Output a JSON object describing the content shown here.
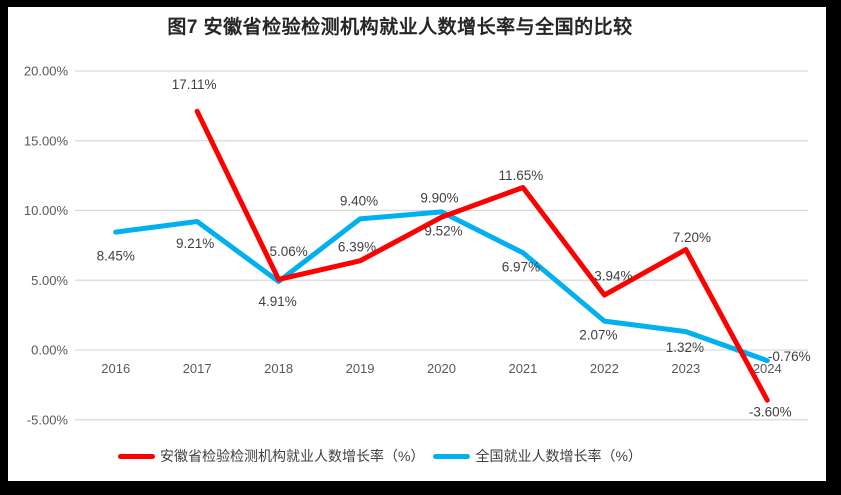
{
  "frame": {
    "background": "#000000",
    "panel_background": "#ffffff"
  },
  "chart_data": {
    "type": "line",
    "title": "图7  安徽省检验检测机构就业人数增长率与全国的比较",
    "categories": [
      "2016",
      "2017",
      "2018",
      "2019",
      "2020",
      "2021",
      "2022",
      "2023",
      "2024"
    ],
    "y_axis": {
      "ticks": [
        {
          "label": "20.00%",
          "value": 20
        },
        {
          "label": "15.00%",
          "value": 15
        },
        {
          "label": "10.00%",
          "value": 10
        },
        {
          "label": "5.00%",
          "value": 5
        },
        {
          "label": "0.00%",
          "value": 0
        },
        {
          "label": "-5.00%",
          "value": -5
        }
      ],
      "range": [
        -5,
        20
      ]
    },
    "grid": true,
    "legend_position": "bottom",
    "series": [
      {
        "id": "anhui",
        "name": "安徽省检验检测机构就业人数增长率（%）",
        "color": "#ff0000",
        "start_index": 1,
        "x": [
          "2017",
          "2018",
          "2019",
          "2020",
          "2021",
          "2022",
          "2023",
          "2024"
        ],
        "values": [
          17.11,
          5.06,
          6.39,
          9.52,
          11.65,
          3.94,
          7.2,
          -3.6
        ],
        "labels": [
          "17.11%",
          "5.06%",
          "6.39%",
          "9.52%",
          "11.65%",
          "3.94%",
          "7.20%",
          "-3.60%"
        ],
        "label_offsets": [
          [
            -3,
            -27
          ],
          [
            10,
            -28
          ],
          [
            -3,
            -14
          ],
          [
            2,
            14
          ],
          [
            -2,
            -12
          ],
          [
            9,
            -19
          ],
          [
            6,
            -12
          ],
          [
            3,
            12
          ]
        ]
      },
      {
        "id": "national",
        "name": "全国就业人数增长率（%）",
        "color": "#00b0f0",
        "start_index": 0,
        "x": [
          "2016",
          "2017",
          "2018",
          "2019",
          "2020",
          "2021",
          "2022",
          "2023",
          "2024"
        ],
        "values": [
          8.45,
          9.21,
          4.91,
          9.4,
          9.9,
          6.97,
          2.07,
          1.32,
          -0.76
        ],
        "labels": [
          "8.45%",
          "9.21%",
          "4.91%",
          "9.40%",
          "9.90%",
          "6.97%",
          "2.07%",
          "1.32%",
          "-0.76%"
        ],
        "label_offsets": [
          [
            0,
            24
          ],
          [
            -2,
            22
          ],
          [
            -1,
            20
          ],
          [
            -1,
            -18
          ],
          [
            -2,
            -14
          ],
          [
            -2,
            14
          ],
          [
            -6,
            14
          ],
          [
            -1,
            16
          ],
          [
            22,
            -4
          ]
        ]
      }
    ],
    "colors": {
      "grid": "#d9d9d9",
      "tick_text": "#595959",
      "label_text": "#404040",
      "title_text": "#262626"
    }
  }
}
